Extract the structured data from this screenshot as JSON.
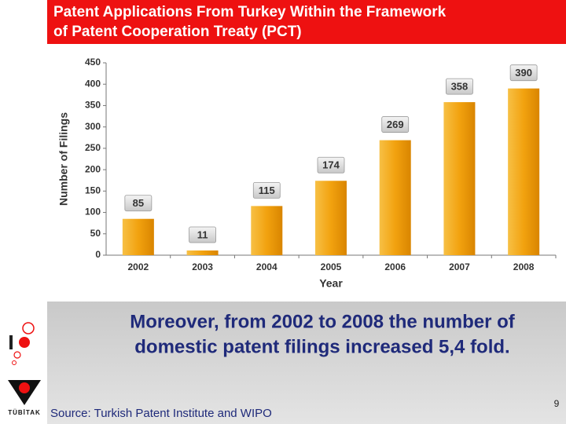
{
  "chart_data": {
    "type": "bar",
    "title_lines": [
      "Patent Applications From Turkey Within the Framework",
      "of Patent Cooperation Treaty (PCT)"
    ],
    "x_label": "Year",
    "y_label": "Number of Filings",
    "categories": [
      "2002",
      "2003",
      "2004",
      "2005",
      "2006",
      "2007",
      "2008"
    ],
    "values": [
      85,
      11,
      115,
      174,
      269,
      358,
      390
    ],
    "color": "#f2a20f",
    "ylim": [
      0,
      450
    ],
    "yticks": [
      0,
      50,
      100,
      150,
      200,
      250,
      300,
      350,
      400,
      450
    ],
    "grid": false
  },
  "body_lines": [
    "Moreover, from 2002 to 2008 the number of",
    "domestic patent filings increased 5,4 fold."
  ],
  "source": "Source: Turkish Patent Institute and WIPO",
  "logo_text": "TÜBİTAK",
  "page_number": "9"
}
